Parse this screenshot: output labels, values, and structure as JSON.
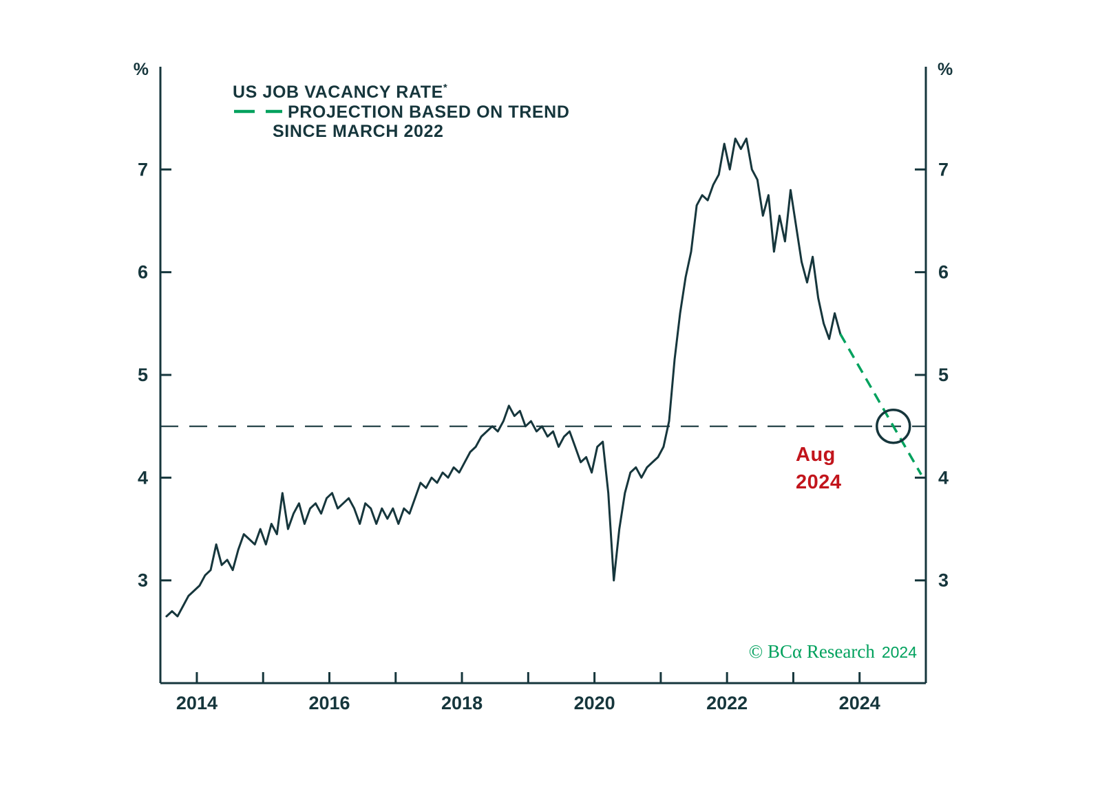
{
  "colors": {
    "text_dark": "#16363c",
    "green": "#00a15d",
    "red": "#c2151c",
    "background": "#ffffff"
  },
  "header": {
    "title_line1": "US JOB VACANCY RATE",
    "title_star": "*",
    "legend_line1": "PROJECTION BASED ON TREND",
    "legend_line2": "SINCE MARCH 2022"
  },
  "axes": {
    "y_unit": "%"
  },
  "annotation": {
    "line1": "Aug",
    "line2": "2024"
  },
  "attribution": {
    "text": "© BCα Research",
    "year": "2024"
  },
  "chart_data": {
    "type": "line",
    "title": "US JOB VACANCY RATE*",
    "legend": [
      {
        "name": "US JOB VACANCY RATE",
        "style": "solid",
        "color": "#16363c"
      },
      {
        "name": "PROJECTION BASED ON TREND SINCE MARCH 2022",
        "style": "dashed",
        "color": "#00a15d"
      }
    ],
    "y_unit": "%",
    "xlim": [
      2013.45,
      2025.0
    ],
    "ylim": [
      2.0,
      8.0
    ],
    "x_ticks": [
      2014,
      2015,
      2016,
      2017,
      2018,
      2019,
      2020,
      2021,
      2022,
      2023,
      2024
    ],
    "x_labeled_ticks": [
      2014,
      2016,
      2018,
      2020,
      2022,
      2024
    ],
    "y_ticks": [
      3,
      4,
      5,
      6,
      7
    ],
    "grid": false,
    "reference_line": {
      "y": 4.5,
      "style": "dashed",
      "color": "#16363c"
    },
    "highlight_circle": {
      "x": 2024.51,
      "y": 4.5,
      "label": "Aug 2024",
      "label_color": "#c2151c"
    },
    "series": [
      {
        "name": "US job vacancy rate",
        "color": "#16363c",
        "style": "solid",
        "frequency": "monthly",
        "first_point": "2013-07",
        "last_point": "2023-09",
        "x_start": 2013.542,
        "x_step": 0.083333,
        "values": [
          2.65,
          2.7,
          2.65,
          2.75,
          2.85,
          2.9,
          2.95,
          3.05,
          3.1,
          3.35,
          3.15,
          3.2,
          3.1,
          3.3,
          3.45,
          3.4,
          3.35,
          3.5,
          3.35,
          3.55,
          3.45,
          3.85,
          3.5,
          3.65,
          3.75,
          3.55,
          3.7,
          3.75,
          3.65,
          3.8,
          3.85,
          3.7,
          3.75,
          3.8,
          3.7,
          3.55,
          3.75,
          3.7,
          3.55,
          3.7,
          3.6,
          3.7,
          3.55,
          3.7,
          3.65,
          3.8,
          3.95,
          3.9,
          4.0,
          3.95,
          4.05,
          4.0,
          4.1,
          4.05,
          4.15,
          4.25,
          4.3,
          4.4,
          4.45,
          4.5,
          4.45,
          4.55,
          4.7,
          4.6,
          4.65,
          4.5,
          4.55,
          4.45,
          4.5,
          4.4,
          4.45,
          4.3,
          4.4,
          4.45,
          4.3,
          4.15,
          4.2,
          4.05,
          4.3,
          4.35,
          3.85,
          3.0,
          3.5,
          3.85,
          4.05,
          4.1,
          4.0,
          4.1,
          4.15,
          4.2,
          4.3,
          4.55,
          5.15,
          5.6,
          5.95,
          6.2,
          6.65,
          6.75,
          6.7,
          6.85,
          6.95,
          7.25,
          7.0,
          7.3,
          7.2,
          7.3,
          7.0,
          6.9,
          6.55,
          6.75,
          6.2,
          6.55,
          6.3,
          6.8,
          6.45,
          6.1,
          5.9,
          6.15,
          5.75,
          5.5,
          5.35,
          5.6,
          5.4
        ]
      },
      {
        "name": "Projection based on trend since March 2022",
        "color": "#00a15d",
        "style": "dashed",
        "x": [
          2023.708,
          2024.93
        ],
        "values": [
          5.4,
          4.03
        ]
      }
    ],
    "source": "© BCA Research 2024"
  }
}
